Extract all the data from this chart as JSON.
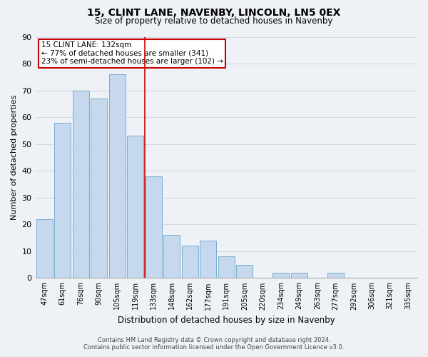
{
  "title": "15, CLINT LANE, NAVENBY, LINCOLN, LN5 0EX",
  "subtitle": "Size of property relative to detached houses in Navenby",
  "xlabel": "Distribution of detached houses by size in Navenby",
  "ylabel": "Number of detached properties",
  "categories": [
    "47sqm",
    "61sqm",
    "76sqm",
    "90sqm",
    "105sqm",
    "119sqm",
    "133sqm",
    "148sqm",
    "162sqm",
    "177sqm",
    "191sqm",
    "205sqm",
    "220sqm",
    "234sqm",
    "249sqm",
    "263sqm",
    "277sqm",
    "292sqm",
    "306sqm",
    "321sqm",
    "335sqm"
  ],
  "values": [
    22,
    58,
    70,
    67,
    76,
    53,
    38,
    16,
    12,
    14,
    8,
    5,
    0,
    2,
    2,
    0,
    2,
    0,
    0,
    0,
    0
  ],
  "bar_color": "#c5d8ed",
  "bar_edge_color": "#7aaece",
  "highlight_line_color": "#cc0000",
  "annotation_text_line1": "15 CLINT LANE: 132sqm",
  "annotation_line2": "← 77% of detached houses are smaller (341)",
  "annotation_line3": "23% of semi-detached houses are larger (102) →",
  "ylim": [
    0,
    90
  ],
  "yticks": [
    0,
    10,
    20,
    30,
    40,
    50,
    60,
    70,
    80,
    90
  ],
  "background_color": "#eef2f7",
  "grid_color": "#d0d8e4",
  "footer_line1": "Contains HM Land Registry data © Crown copyright and database right 2024.",
  "footer_line2": "Contains public sector information licensed under the Open Government Licence v3.0."
}
